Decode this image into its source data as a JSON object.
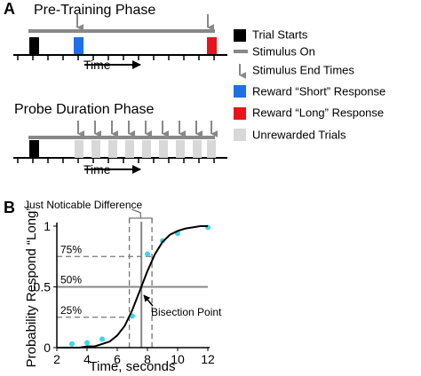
{
  "panel_a": {
    "label": "A",
    "pre_training": {
      "title": "Pre-Training Phase",
      "time_label": "Time"
    },
    "probe": {
      "title": "Probe Duration Phase",
      "time_label": "Time"
    },
    "legend": [
      "Trial Starts",
      "Stimulus On",
      "Stimulus End Times",
      "Reward “Short” Response",
      "Reward “Long” Response",
      "Unrewarded Trials"
    ]
  },
  "chart_data": {
    "type": "scatter",
    "panel_label": "B",
    "xlabel": "Time, seconds",
    "ylabel": "Probability Respond “Long”",
    "xlim": [
      2,
      12
    ],
    "ylim": [
      0,
      1
    ],
    "xticks": [
      2,
      4,
      6,
      8,
      10,
      12
    ],
    "yticks": [
      0,
      0.5,
      1
    ],
    "series": [
      {
        "style": "markers",
        "color": "#3dd6e8",
        "x": [
          3,
          4,
          5,
          7,
          8,
          9,
          10,
          12
        ],
        "values": [
          0.03,
          0.04,
          0.07,
          0.26,
          0.77,
          0.88,
          0.94,
          0.99
        ]
      },
      {
        "style": "line",
        "color": "#000000",
        "x": [
          2,
          2.5,
          3,
          3.5,
          4,
          4.5,
          5,
          5.5,
          6,
          6.5,
          7,
          7.5,
          8,
          8.5,
          9,
          9.5,
          10,
          10.5,
          11,
          11.5,
          12
        ],
        "values": [
          0,
          0,
          0,
          0,
          0.01,
          0.01,
          0.03,
          0.05,
          0.1,
          0.18,
          0.31,
          0.47,
          0.63,
          0.77,
          0.87,
          0.93,
          0.96,
          0.98,
          0.99,
          1,
          1
        ]
      }
    ],
    "hlines": [
      {
        "value": 0.75,
        "label": "75%",
        "style": "dashed"
      },
      {
        "value": 0.5,
        "label": "50%",
        "style": "solid"
      },
      {
        "value": 0.25,
        "label": "25%",
        "style": "dashed"
      }
    ],
    "vlines": [
      {
        "value": 6.8,
        "style": "dashed"
      },
      {
        "value": 7.6,
        "style": "solid"
      },
      {
        "value": 8.3,
        "style": "dashed"
      }
    ],
    "annotations": {
      "jnd": "Just Noticable Difference",
      "bisection": "Bisection Point"
    }
  }
}
